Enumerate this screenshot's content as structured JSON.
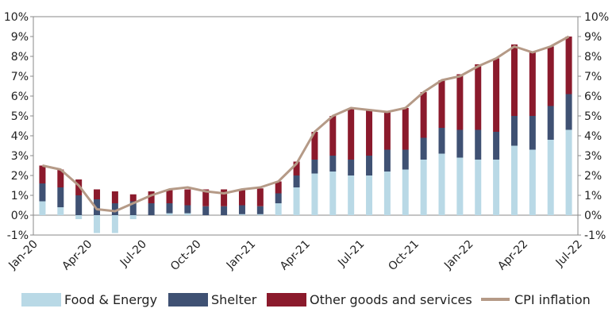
{
  "chart_data": {
    "type": "bar",
    "stacked": true,
    "categories": [
      "Jan-20",
      "Feb-20",
      "Mar-20",
      "Apr-20",
      "May-20",
      "Jun-20",
      "Jul-20",
      "Aug-20",
      "Sep-20",
      "Oct-20",
      "Nov-20",
      "Dec-20",
      "Jan-21",
      "Feb-21",
      "Mar-21",
      "Apr-21",
      "May-21",
      "Jun-21",
      "Jul-21",
      "Aug-21",
      "Sep-21",
      "Oct-21",
      "Nov-21",
      "Dec-21",
      "Jan-22",
      "Feb-22",
      "Mar-22",
      "Apr-22",
      "May-22",
      "Jun-22"
    ],
    "x_tick_labels": [
      "Jan-20",
      "Apr-20",
      "Jul-20",
      "Oct-20",
      "Jan-21",
      "Apr-21",
      "Jul-21",
      "Oct-21",
      "Jan-22",
      "Apr-22",
      "Jul-22"
    ],
    "y_tick_labels": [
      "-1%",
      "0%",
      "1%",
      "2%",
      "3%",
      "4%",
      "5%",
      "6%",
      "7%",
      "8%",
      "9%",
      "10%"
    ],
    "ylim": [
      -1,
      10
    ],
    "ylabel_unit": "%",
    "series": [
      {
        "name": "Food & Energy",
        "color": "#b9d9e6",
        "values": [
          0.7,
          0.4,
          -0.2,
          -0.9,
          -0.9,
          -0.2,
          0.0,
          0.1,
          0.1,
          0.0,
          0.0,
          0.05,
          0.05,
          0.6,
          1.4,
          2.1,
          2.2,
          2.0,
          2.0,
          2.2,
          2.3,
          2.8,
          3.1,
          2.9,
          2.8,
          2.8,
          3.5,
          3.3,
          3.8,
          4.3
        ]
      },
      {
        "name": "Shelter",
        "color": "#3f5173",
        "values": [
          0.9,
          1.0,
          1.0,
          0.8,
          0.6,
          0.7,
          0.6,
          0.5,
          0.4,
          0.45,
          0.45,
          0.45,
          0.4,
          0.5,
          0.6,
          0.7,
          0.8,
          0.8,
          1.0,
          1.1,
          1.0,
          1.1,
          1.3,
          1.4,
          1.5,
          1.4,
          1.5,
          1.7,
          1.7,
          1.8
        ]
      },
      {
        "name": "Other goods and services",
        "color": "#8b1a2c",
        "values": [
          0.9,
          0.9,
          0.8,
          0.5,
          0.6,
          0.35,
          0.6,
          0.7,
          0.8,
          0.85,
          0.85,
          0.8,
          0.9,
          0.6,
          0.7,
          1.4,
          2.0,
          2.6,
          2.3,
          1.9,
          2.1,
          2.3,
          2.4,
          2.8,
          3.3,
          3.7,
          3.6,
          3.2,
          3.0,
          2.9
        ]
      },
      {
        "name": "CPI inflation",
        "type": "line",
        "color": "#b59a87",
        "values": [
          2.5,
          2.3,
          1.5,
          0.3,
          0.2,
          0.6,
          1.0,
          1.3,
          1.4,
          1.2,
          1.1,
          1.3,
          1.4,
          1.7,
          2.6,
          4.2,
          5.0,
          5.4,
          5.3,
          5.2,
          5.4,
          6.2,
          6.8,
          7.0,
          7.5,
          7.9,
          8.5,
          8.2,
          8.5,
          9.0
        ]
      }
    ],
    "grid": false,
    "legend": "bottom"
  }
}
